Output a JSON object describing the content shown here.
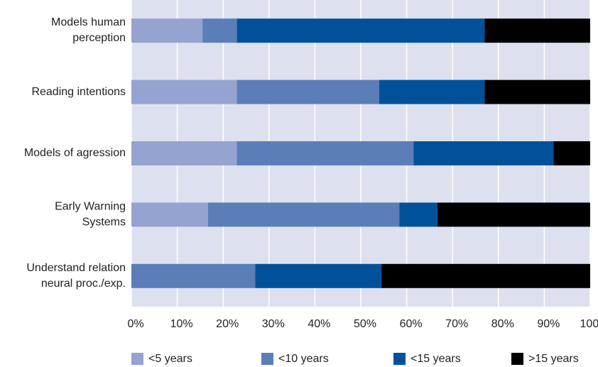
{
  "chart_data": {
    "type": "stacked-barh",
    "categories": [
      "Models human\nperception",
      "Reading intentions",
      "Models of agression",
      "Early Warning\nSystems",
      "Understand relation\nneural proc./exp."
    ],
    "series": [
      {
        "name": "<5 years",
        "color": "#94a3cf",
        "values": [
          15.5,
          23,
          23,
          16.7,
          0
        ]
      },
      {
        "name": "<10 years",
        "color": "#5b7db8",
        "values": [
          7.5,
          31,
          38.5,
          41.7,
          27
        ]
      },
      {
        "name": "<15 years",
        "color": "#00519a",
        "values": [
          54,
          23,
          30.5,
          8.3,
          27.5
        ]
      },
      {
        "name": ">15 years",
        "color": "#000000",
        "values": [
          23,
          23,
          8,
          33.3,
          45.5
        ]
      }
    ],
    "xlim": [
      0,
      100
    ],
    "xticks": [
      {
        "value": 0,
        "label": "0%"
      },
      {
        "value": 10,
        "label": "10%"
      },
      {
        "value": 20,
        "label": "20%"
      },
      {
        "value": 30,
        "label": "30%"
      },
      {
        "value": 40,
        "label": "40%"
      },
      {
        "value": 50,
        "label": "50%"
      },
      {
        "value": 60,
        "label": "60%"
      },
      {
        "value": 70,
        "label": "70%"
      },
      {
        "value": 80,
        "label": "80%"
      },
      {
        "value": 90,
        "label": "90%"
      },
      {
        "value": 100,
        "label": "100%"
      }
    ],
    "grid": true,
    "legend": "bottom"
  }
}
